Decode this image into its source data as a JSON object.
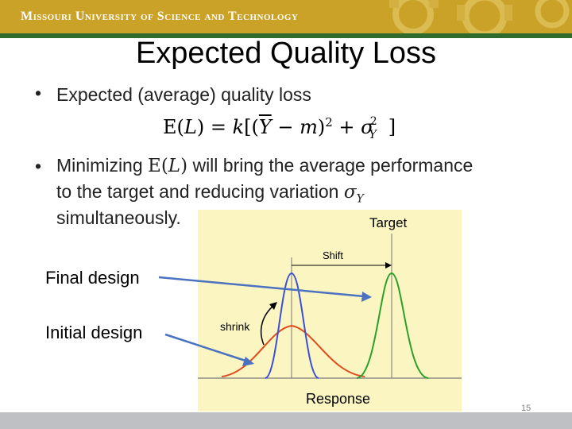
{
  "header": {
    "institution": "Missouri University of Science and Technology"
  },
  "slide": {
    "title": "Expected Quality Loss",
    "bullet1": "Expected (average) quality loss",
    "bullet2_part1": "Minimizing ",
    "bullet2_part2": " will bring the average performance",
    "bullet2_line2": "to the target and reducing variation ",
    "bullet2_line3": "simultaneously.",
    "equation": "E(L) = k[(Ȳ − m)² + σ²_Y]",
    "sigma_symbol": "σ",
    "sigma_sub": "Y"
  },
  "figure": {
    "target_label": "Target",
    "shift_label": "Shift",
    "shrink_label": "shrink",
    "response_label": "Response"
  },
  "labels": {
    "final_design": "Final design",
    "initial_design": "Initial design"
  },
  "footer": {
    "page_number": "15"
  },
  "colors": {
    "header_gold": "#c9a227",
    "header_green": "#2f6b2c",
    "figure_bg": "#fbf5c2",
    "blue_curve": "#3a4fd6",
    "red_curve": "#e04a1e",
    "green_curve": "#2aa02a",
    "arrow": "#4a72c0"
  }
}
